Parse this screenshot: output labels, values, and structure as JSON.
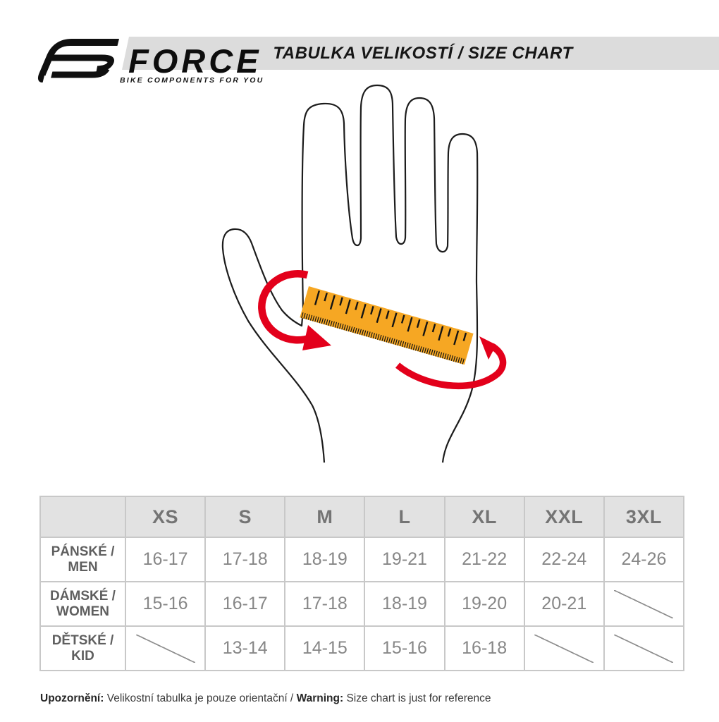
{
  "brand": {
    "name": "FORCE",
    "tagline": "BIKE COMPONENTS FOR YOU"
  },
  "header": {
    "title": "TABULKA VELIKOSTÍ / SIZE CHART"
  },
  "illustration": {
    "hand_icon": "hand-outline",
    "tape_icon": "measuring-tape",
    "arrows_icon": "wrap-around-arrows",
    "tape_color": "#F6A723",
    "arrow_color": "#E3001B",
    "outline_color": "#1c1c1c"
  },
  "size_table": {
    "columns": [
      "XS",
      "S",
      "M",
      "L",
      "XL",
      "XXL",
      "3XL"
    ],
    "rows": [
      {
        "label": "PÁNSKÉ /\nMEN",
        "values": [
          "16-17",
          "17-18",
          "18-19",
          "19-21",
          "21-22",
          "22-24",
          "24-26"
        ]
      },
      {
        "label": "DÁMSKÉ /\nWOMEN",
        "values": [
          "15-16",
          "16-17",
          "17-18",
          "18-19",
          "19-20",
          "20-21",
          null
        ]
      },
      {
        "label": "DĚTSKÉ /\nKID",
        "values": [
          null,
          "13-14",
          "14-15",
          "15-16",
          "16-18",
          null,
          null
        ]
      }
    ]
  },
  "footer": {
    "warning_cz_label": "Upozornění:",
    "warning_cz_text": " Velikostní tabulka je pouze orientační / ",
    "warning_en_label": "Warning:",
    "warning_en_text": " Size chart is just for reference"
  },
  "colors": {
    "band_gray": "#DCDCDC",
    "table_header_gray": "#E2E2E2",
    "grid_gray": "#C8C8C8"
  }
}
